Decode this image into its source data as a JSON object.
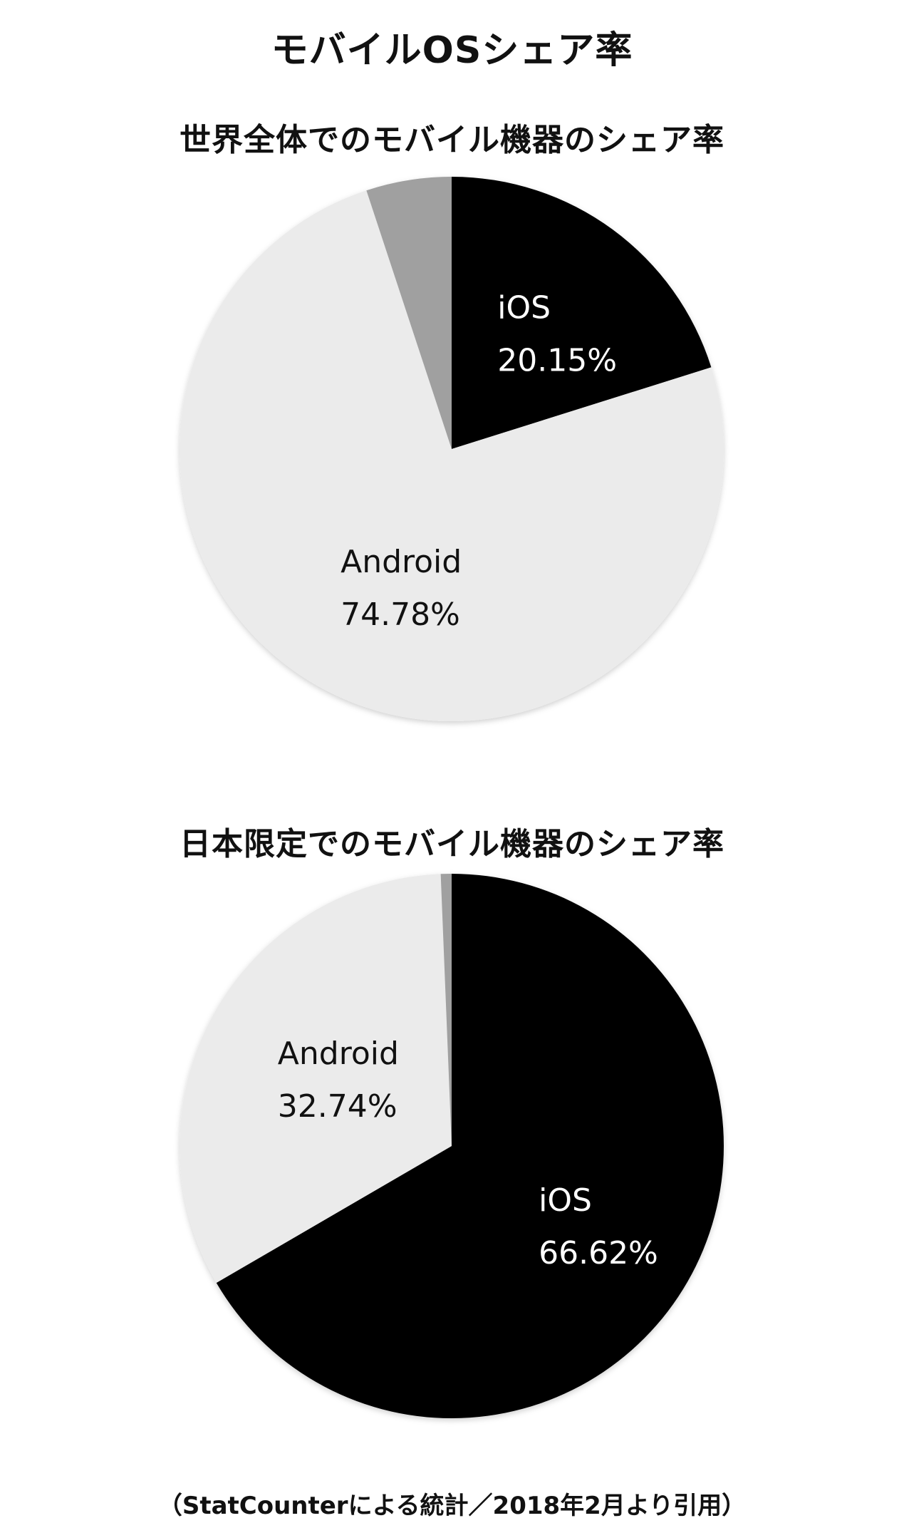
{
  "title": "モバイルOSシェア率",
  "footnote": "（StatCounterによる統計／2018年2月より引用）",
  "colors": {
    "ios": "#000000",
    "android": "#ebebeb",
    "other": "#a0a0a0",
    "label_on_dark": "#ffffff",
    "label_on_light": "#111111"
  },
  "chart_data": [
    {
      "type": "pie",
      "title": "世界全体でのモバイル機器のシェア率",
      "slices": [
        {
          "name": "iOS",
          "value": 20.15,
          "label": "20.15%",
          "color": "#000000"
        },
        {
          "name": "Android",
          "value": 74.78,
          "label": "74.78%",
          "color": "#ebebeb"
        },
        {
          "name": "",
          "value": 5.07,
          "label": "",
          "color": "#a0a0a0"
        }
      ],
      "start": "top",
      "direction": "clockwise"
    },
    {
      "type": "pie",
      "title": "日本限定でのモバイル機器のシェア率",
      "slices": [
        {
          "name": "iOS",
          "value": 66.62,
          "label": "66.62%",
          "color": "#000000"
        },
        {
          "name": "Android",
          "value": 32.74,
          "label": "32.74%",
          "color": "#ebebeb"
        },
        {
          "name": "",
          "value": 0.64,
          "label": "",
          "color": "#a0a0a0"
        }
      ],
      "start": "top",
      "direction": "clockwise"
    }
  ]
}
